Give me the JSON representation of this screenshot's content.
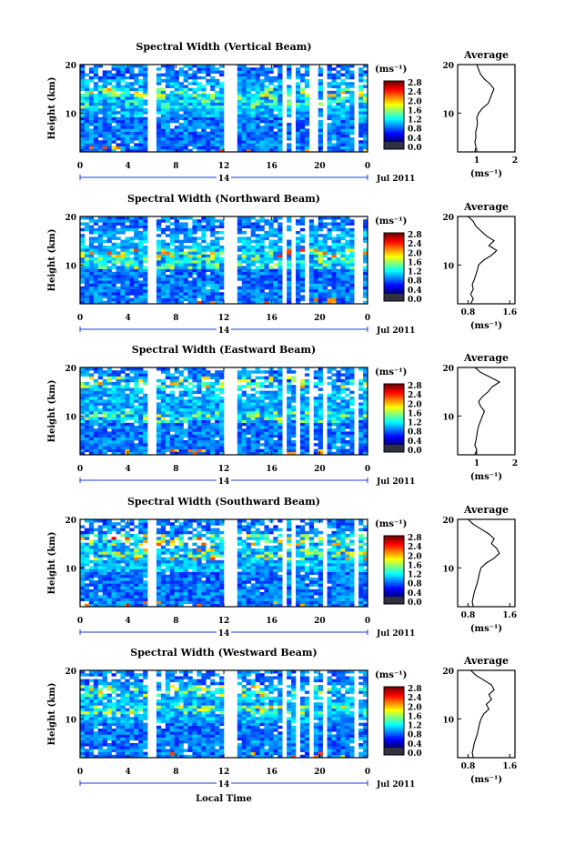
{
  "chart_data": [
    {
      "type": "heatmap",
      "title": "Spectral Width (Vertical Beam)",
      "ylabel": "Height (km)",
      "x_ticks": [
        "0",
        "4",
        "8",
        "12",
        "16",
        "20",
        "0"
      ],
      "xlim": [
        0,
        24
      ],
      "y_ticks": [
        "20",
        "10"
      ],
      "ylim": [
        2,
        20
      ],
      "cbar_unit": "(ms⁻¹)",
      "cbar_ticks": [
        "0.0",
        "0.4",
        "0.8",
        "1.2",
        "1.6",
        "2.0",
        "2.4",
        "2.8"
      ],
      "date_center": "14",
      "date_label": "Jul 2011",
      "gaps_hours": [
        [
          5.7,
          6.2
        ],
        [
          12.0,
          13.2
        ],
        [
          16.8,
          17.2
        ],
        [
          17.6,
          18.1
        ],
        [
          19.3,
          19.7
        ],
        [
          20.4,
          20.8
        ],
        [
          22.9,
          23.4
        ]
      ],
      "hot_layers": [
        {
          "height": 14,
          "level": 0.35
        },
        {
          "height": 12,
          "level": 0.25
        }
      ],
      "profile": {
        "title": "Average",
        "xlabel": "(ms⁻¹)",
        "x_ticks": [
          "1",
          "2"
        ],
        "xlim": [
          0.5,
          2
        ],
        "height": [
          2,
          3,
          4,
          5,
          6,
          7,
          8,
          9,
          10,
          11,
          12,
          13,
          14,
          15,
          16,
          17,
          18,
          19,
          20
        ],
        "width": [
          0.95,
          0.98,
          0.95,
          0.98,
          0.97,
          1.0,
          1.02,
          1.0,
          1.05,
          1.15,
          1.3,
          1.35,
          1.4,
          1.45,
          1.35,
          1.2,
          1.1,
          1.05,
          1.0
        ]
      }
    },
    {
      "type": "heatmap",
      "title": "Spectral Width (Northward Beam)",
      "ylabel": "Height (km)",
      "x_ticks": [
        "0",
        "4",
        "8",
        "12",
        "16",
        "20",
        "0"
      ],
      "xlim": [
        0,
        24
      ],
      "y_ticks": [
        "20",
        "10"
      ],
      "ylim": [
        2,
        20
      ],
      "cbar_unit": "(ms⁻¹)",
      "cbar_ticks": [
        "0.0",
        "0.4",
        "0.8",
        "1.2",
        "1.6",
        "2.0",
        "2.4",
        "2.8"
      ],
      "date_center": "14",
      "date_label": "Jul 2011",
      "gaps_hours": [
        [
          5.7,
          6.2
        ],
        [
          12.0,
          13.2
        ],
        [
          16.8,
          17.1
        ],
        [
          17.8,
          18.1
        ],
        [
          18.9,
          19.2
        ],
        [
          20.5,
          20.8
        ],
        [
          22.8,
          23.5
        ]
      ],
      "hot_layers": [
        {
          "height": 12.5,
          "level": 0.5
        },
        {
          "height": 10.5,
          "level": 0.3
        }
      ],
      "profile": {
        "title": "Average",
        "xlabel": "(ms⁻¹)",
        "x_ticks": [
          "0.8",
          "1.6"
        ],
        "xlim": [
          0.6,
          1.7
        ],
        "height": [
          2,
          3,
          4,
          5,
          6,
          7,
          8,
          9,
          10,
          11,
          12,
          13,
          14,
          15,
          16,
          17,
          18,
          19,
          20
        ],
        "width": [
          0.85,
          0.9,
          0.85,
          0.9,
          0.88,
          0.92,
          0.95,
          0.98,
          1.0,
          1.1,
          1.25,
          1.35,
          1.2,
          1.3,
          1.15,
          1.05,
          0.95,
          0.9,
          0.8
        ]
      }
    },
    {
      "type": "heatmap",
      "title": "Spectral Width (Eastward Beam)",
      "ylabel": "Height (km)",
      "x_ticks": [
        "0",
        "4",
        "8",
        "12",
        "16",
        "20",
        "0"
      ],
      "xlim": [
        0,
        24
      ],
      "y_ticks": [
        "20",
        "10"
      ],
      "ylim": [
        2,
        20
      ],
      "cbar_unit": "(ms⁻¹)",
      "cbar_ticks": [
        "0.0",
        "0.4",
        "0.8",
        "1.2",
        "1.6",
        "2.0",
        "2.4",
        "2.8"
      ],
      "date_center": "14",
      "date_label": "Jul 2011",
      "gaps_hours": [
        [
          5.7,
          6.2
        ],
        [
          12.0,
          13.2
        ],
        [
          16.8,
          17.2
        ],
        [
          18.0,
          18.3
        ],
        [
          19.2,
          19.5
        ],
        [
          20.4,
          20.7
        ],
        [
          22.9,
          23.4
        ]
      ],
      "hot_layers": [
        {
          "height": 17,
          "level": 0.45
        },
        {
          "height": 10,
          "level": 0.3
        }
      ],
      "profile": {
        "title": "Average",
        "xlabel": "(ms⁻¹)",
        "x_ticks": [
          "1",
          "2"
        ],
        "xlim": [
          0.5,
          2
        ],
        "height": [
          2,
          3,
          4,
          5,
          6,
          7,
          8,
          9,
          10,
          11,
          12,
          13,
          14,
          15,
          16,
          17,
          18,
          19,
          20
        ],
        "width": [
          0.95,
          1.0,
          0.95,
          0.98,
          1.0,
          1.02,
          1.05,
          1.1,
          1.15,
          1.2,
          1.1,
          1.05,
          1.15,
          1.3,
          1.4,
          1.6,
          1.35,
          1.1,
          0.95
        ]
      }
    },
    {
      "type": "heatmap",
      "title": "Spectral Width (Southward Beam)",
      "ylabel": "Height (km)",
      "x_ticks": [
        "0",
        "4",
        "8",
        "12",
        "16",
        "20",
        "0"
      ],
      "xlim": [
        0,
        24
      ],
      "y_ticks": [
        "20",
        "10"
      ],
      "ylim": [
        2,
        20
      ],
      "cbar_unit": "(ms⁻¹)",
      "cbar_ticks": [
        "0.0",
        "0.4",
        "0.8",
        "1.2",
        "1.6",
        "2.0",
        "2.4",
        "2.8"
      ],
      "date_center": "14",
      "date_label": "Jul 2011",
      "gaps_hours": [
        [
          5.7,
          6.2
        ],
        [
          12.0,
          13.2
        ],
        [
          16.8,
          17.1
        ],
        [
          17.8,
          18.1
        ],
        [
          19.0,
          19.3
        ],
        [
          20.4,
          20.7
        ],
        [
          22.9,
          23.4
        ]
      ],
      "hot_layers": [
        {
          "height": 16,
          "level": 0.5
        },
        {
          "height": 13,
          "level": 0.45
        }
      ],
      "profile": {
        "title": "Average",
        "xlabel": "(ms⁻¹)",
        "x_ticks": [
          "0.8",
          "1.6"
        ],
        "xlim": [
          0.6,
          1.7
        ],
        "height": [
          2,
          3,
          4,
          5,
          6,
          7,
          8,
          9,
          10,
          11,
          12,
          13,
          14,
          15,
          16,
          17,
          18,
          19,
          20
        ],
        "width": [
          0.9,
          0.88,
          0.9,
          0.92,
          0.95,
          0.98,
          1.0,
          1.02,
          1.05,
          1.15,
          1.3,
          1.4,
          1.35,
          1.25,
          1.3,
          1.2,
          1.05,
          0.9,
          0.8
        ]
      }
    },
    {
      "type": "heatmap",
      "title": "Spectral Width (Westward Beam)",
      "ylabel": "Height (km)",
      "x_ticks": [
        "0",
        "4",
        "8",
        "12",
        "16",
        "20",
        "0"
      ],
      "xlim": [
        0,
        24
      ],
      "y_ticks": [
        "20",
        "10"
      ],
      "ylim": [
        2,
        20
      ],
      "cbar_unit": "(ms⁻¹)",
      "cbar_ticks": [
        "0.0",
        "0.4",
        "0.8",
        "1.2",
        "1.6",
        "2.0",
        "2.4",
        "2.8"
      ],
      "date_center": "14",
      "date_label": "Jul 2011",
      "xlabel": "Local Time",
      "gaps_hours": [
        [
          5.7,
          6.2
        ],
        [
          12.0,
          13.2
        ],
        [
          16.8,
          17.1
        ],
        [
          17.9,
          18.2
        ],
        [
          19.1,
          19.4
        ],
        [
          20.4,
          20.7
        ],
        [
          22.9,
          23.4
        ]
      ],
      "hot_layers": [
        {
          "height": 16,
          "level": 0.4
        },
        {
          "height": 12,
          "level": 0.35
        }
      ],
      "profile": {
        "title": "Average",
        "xlabel": "(ms⁻¹)",
        "x_ticks": [
          "0.8",
          "1.6"
        ],
        "xlim": [
          0.6,
          1.7
        ],
        "height": [
          2,
          3,
          4,
          5,
          6,
          7,
          8,
          9,
          10,
          11,
          12,
          13,
          14,
          15,
          16,
          17,
          18,
          19,
          20
        ],
        "width": [
          0.9,
          0.88,
          0.9,
          0.92,
          0.95,
          0.98,
          1.0,
          1.02,
          1.05,
          1.1,
          1.2,
          1.15,
          1.25,
          1.2,
          1.3,
          1.25,
          1.1,
          0.95,
          0.85
        ]
      }
    }
  ],
  "colors": {
    "low": "#000080",
    "mid": "#00c8ff",
    "high": "#ff0000",
    "bottom_block": "#303040"
  }
}
